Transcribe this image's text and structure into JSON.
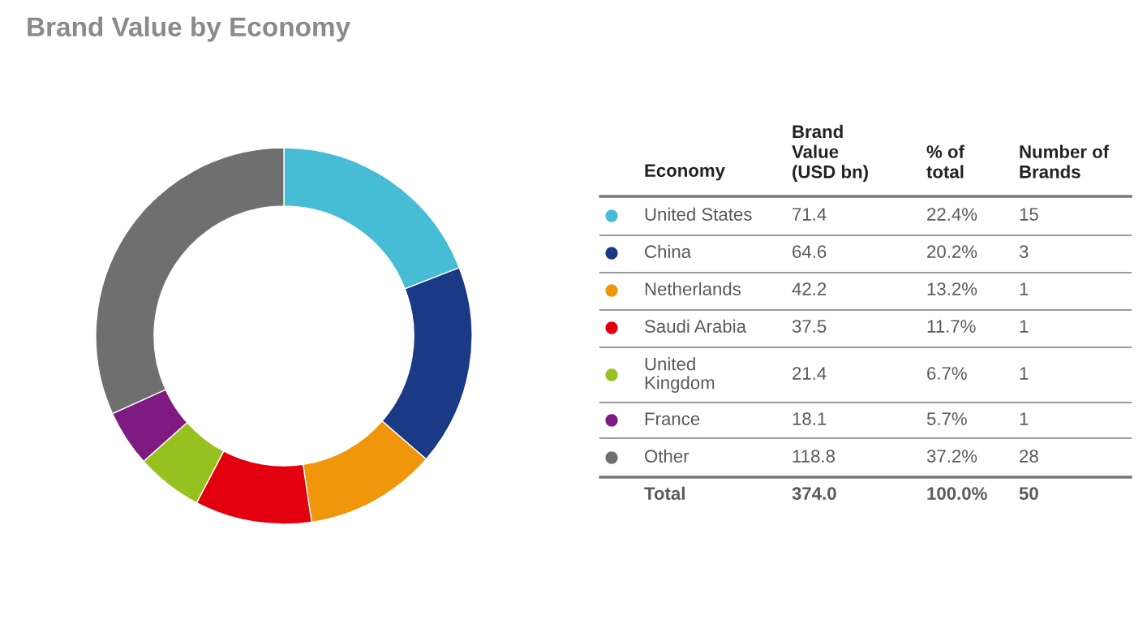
{
  "chart_data": {
    "type": "donut",
    "title": "Brand Value by Economy",
    "categories": [
      "United States",
      "China",
      "Netherlands",
      "Saudi Arabia",
      "United\nKingdom",
      "France",
      "Other"
    ],
    "values": [
      71.4,
      64.6,
      42.2,
      37.5,
      21.4,
      18.1,
      118.8
    ],
    "colors": [
      "#47bcd5",
      "#1b3a85",
      "#f0960a",
      "#e2000f",
      "#97c11f",
      "#7e1a82",
      "#6f6f6f"
    ],
    "legend": "right",
    "legend_title": "Economy",
    "data_labels": true,
    "annotations": [
      "Brand\nValue\n(USD bn)",
      "% of\ntotal",
      "Number of\nBrands",
      "22.4%",
      "15",
      "20.2%",
      "3",
      "13.2%",
      "1",
      "11.7%",
      "1",
      "6.7%",
      "1",
      "5.7%",
      "1",
      "37.2%",
      "28",
      "Total",
      "374.0",
      "100.0%",
      "50"
    ]
  }
}
